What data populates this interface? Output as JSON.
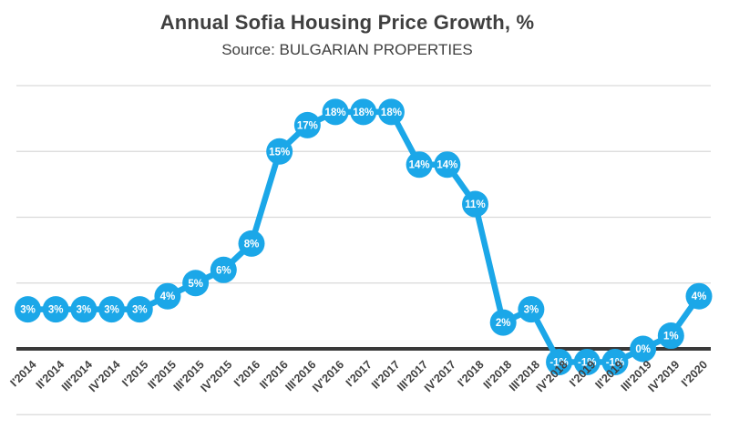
{
  "header": {
    "title": "Annual Sofia Housing Price Growth, %",
    "subtitle": "Source: BULGARIAN PROPERTIES"
  },
  "chart_data": {
    "type": "line",
    "title": "Annual Sofia Housing Price Growth, %",
    "subtitle": "Source: BULGARIAN PROPERTIES",
    "categories": [
      "I'2014",
      "II'2014",
      "III'2014",
      "IV'2014",
      "I'2015",
      "II'2015",
      "III'2015",
      "IV'2015",
      "I'2016",
      "II'2016",
      "III'2016",
      "IV'2016",
      "I'2017",
      "II'2017",
      "III'2017",
      "IV'2017",
      "I'2018",
      "II'2018",
      "III'2018",
      "IV'2018",
      "I'2019",
      "II'2019",
      "III'2019",
      "IV'2019",
      "I'2020"
    ],
    "values": [
      3,
      3,
      3,
      3,
      3,
      4,
      5,
      6,
      8,
      15,
      17,
      18,
      18,
      18,
      14,
      14,
      11,
      2,
      3,
      -1,
      -1,
      -1,
      0,
      1,
      4
    ],
    "point_labels": [
      "3%",
      "3%",
      "3%",
      "3%",
      "3%",
      "4%",
      "5%",
      "6%",
      "8%",
      "15%",
      "17%",
      "18%",
      "18%",
      "18%",
      "14%",
      "14%",
      "11%",
      "2%",
      "3%",
      "-1%",
      "-1%",
      "-1%",
      "0%",
      "1%",
      "4%"
    ],
    "xlabel": "",
    "ylabel": "",
    "ylim": [
      -5,
      20
    ],
    "y_gridlines": [
      20,
      15,
      10,
      5,
      -5
    ],
    "zero_axis_value": 0,
    "grid": true,
    "legend": "none",
    "marker_style": "filled-circle-with-label",
    "colors": {
      "line": "#1BA7E8",
      "marker_fill": "#1BA7E8",
      "marker_text": "#FFFFFF",
      "gridline": "#D9D9D9",
      "zero_line": "#3A3A3A",
      "axis_text": "#404040",
      "title_text": "#3F3F3F"
    }
  }
}
